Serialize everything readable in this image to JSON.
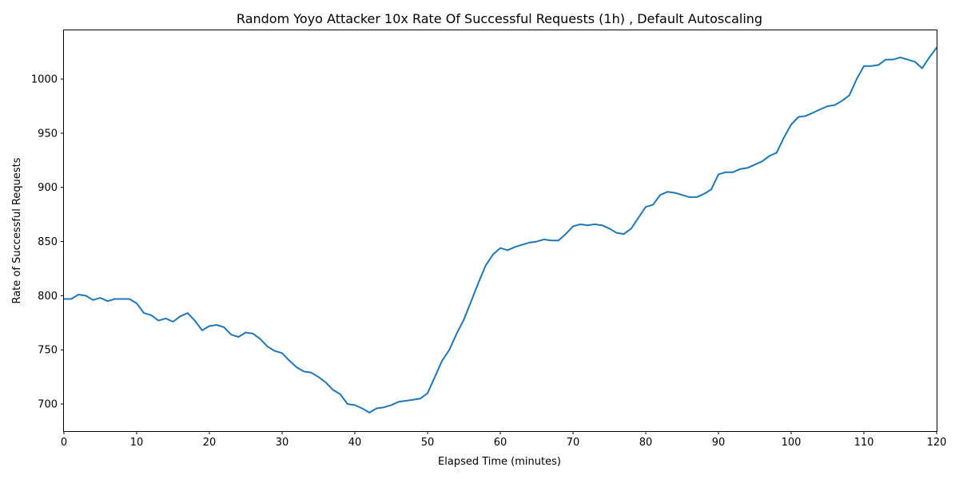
{
  "chart_data": {
    "type": "line",
    "title": "Random Yoyo Attacker 10x Rate Of Successful Requests (1h) , Default Autoscaling",
    "xlabel": "Elapsed Time (minutes)",
    "ylabel": "Rate of Successful Requests",
    "xlim": [
      0,
      120
    ],
    "ylim": [
      675,
      1045
    ],
    "x_ticks": [
      0,
      10,
      20,
      30,
      40,
      50,
      60,
      70,
      80,
      90,
      100,
      110,
      120
    ],
    "y_ticks": [
      700,
      750,
      800,
      850,
      900,
      950,
      1000
    ],
    "grid": false,
    "legend": "none",
    "series": [
      {
        "color": "#1f77b4",
        "x": [
          0,
          1,
          2,
          3,
          4,
          5,
          6,
          7,
          8,
          9,
          10,
          11,
          12,
          13,
          14,
          15,
          16,
          17,
          18,
          19,
          20,
          21,
          22,
          23,
          24,
          25,
          26,
          27,
          28,
          29,
          30,
          31,
          32,
          33,
          34,
          35,
          36,
          37,
          38,
          39,
          40,
          41,
          42,
          43,
          44,
          45,
          46,
          47,
          48,
          49,
          50,
          51,
          52,
          53,
          54,
          55,
          56,
          57,
          58,
          59,
          60,
          61,
          62,
          63,
          64,
          65,
          66,
          67,
          68,
          69,
          70,
          71,
          72,
          73,
          74,
          75,
          76,
          77,
          78,
          79,
          80,
          81,
          82,
          83,
          84,
          85,
          86,
          87,
          88,
          89,
          90,
          91,
          92,
          93,
          94,
          95,
          96,
          97,
          98,
          99,
          100,
          101,
          102,
          103,
          104,
          105,
          106,
          107,
          108,
          109,
          110,
          111,
          112,
          113,
          114,
          115,
          116,
          117,
          118,
          119,
          120
        ],
        "y": [
          797,
          797,
          801,
          800,
          796,
          798,
          795,
          797,
          797,
          797,
          793,
          784,
          782,
          777,
          779,
          776,
          781,
          784,
          777,
          768,
          772,
          773,
          771,
          764,
          762,
          766,
          765,
          760,
          753,
          749,
          747,
          740,
          734,
          730,
          729,
          725,
          720,
          713,
          709,
          700,
          699,
          696,
          692,
          696,
          697,
          699,
          702,
          703,
          704,
          705,
          710,
          725,
          740,
          750,
          765,
          778,
          795,
          812,
          828,
          838,
          844,
          842,
          845,
          847,
          849,
          850,
          852,
          851,
          851,
          857,
          864,
          866,
          865,
          866,
          865,
          862,
          858,
          857,
          862,
          872,
          882,
          884,
          893,
          896,
          895,
          893,
          891,
          891,
          894,
          898,
          912,
          914,
          914,
          917,
          918,
          921,
          924,
          929,
          932,
          946,
          958,
          965,
          966,
          969,
          972,
          975,
          976,
          980,
          985,
          1000,
          1012,
          1012,
          1013,
          1018,
          1018,
          1020,
          1018,
          1016,
          1010,
          1020,
          1029
        ]
      }
    ]
  }
}
